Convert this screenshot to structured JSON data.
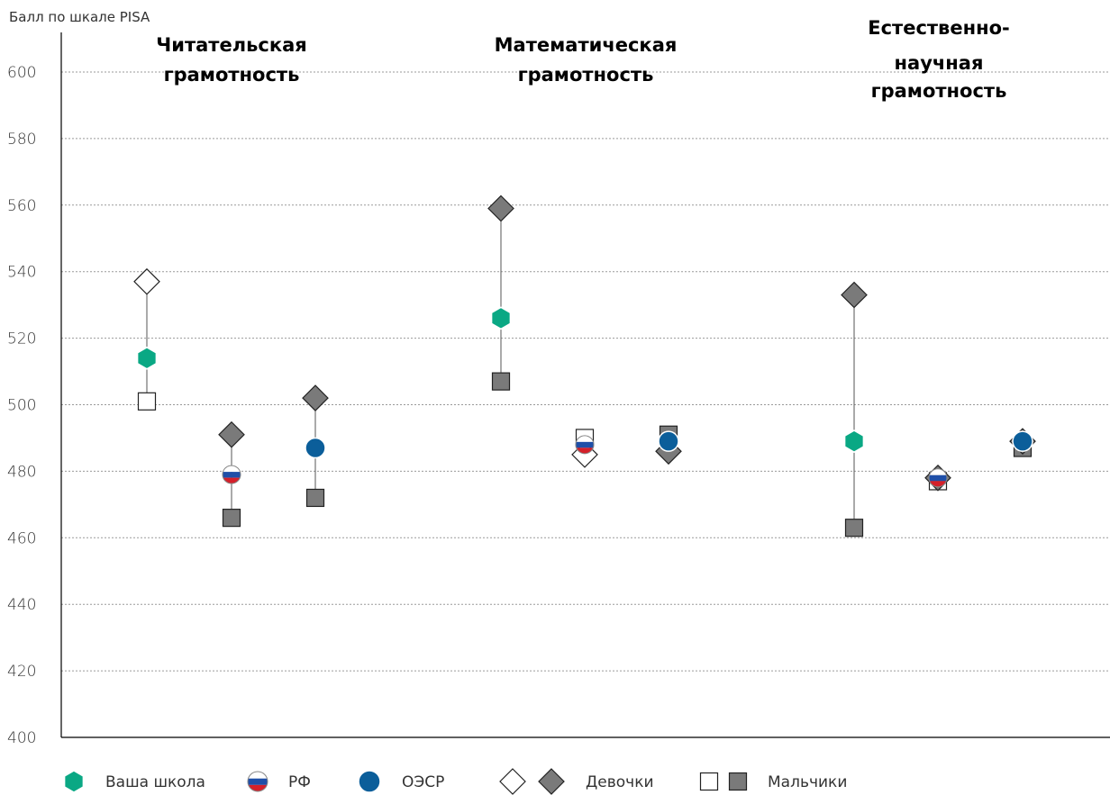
{
  "chart_data": {
    "type": "scatter",
    "ylabel": "Балл по шкале PISA",
    "ylim": [
      400,
      610
    ],
    "yticks": [
      400,
      420,
      440,
      460,
      480,
      500,
      520,
      540,
      560,
      580,
      600
    ],
    "grid": "horizontal-dashed",
    "groups": [
      {
        "title_lines": [
          "Читательская",
          "грамотность"
        ],
        "entities": [
          {
            "entity": "Ваша школа",
            "total": 514,
            "girls": 537,
            "boys": 501
          },
          {
            "entity": "РФ",
            "total": 479,
            "girls": 491,
            "boys": 466
          },
          {
            "entity": "ОЭСР",
            "total": 487,
            "girls": 502,
            "boys": 472
          }
        ]
      },
      {
        "title_lines": [
          "Математическая",
          "грамотность"
        ],
        "entities": [
          {
            "entity": "Ваша школа",
            "total": 526,
            "girls": 559,
            "boys": 507
          },
          {
            "entity": "РФ",
            "total": 488,
            "girls": 485,
            "boys": 490
          },
          {
            "entity": "ОЭСР",
            "total": 489,
            "girls": 486,
            "boys": 491
          }
        ]
      },
      {
        "title_lines": [
          "Естественно-",
          "научная",
          "грамотность"
        ],
        "entities": [
          {
            "entity": "Ваша школа",
            "total": 489,
            "girls": 533,
            "boys": 463
          },
          {
            "entity": "РФ",
            "total": 478,
            "girls": 478,
            "boys": 477
          },
          {
            "entity": "ОЭСР",
            "total": 489,
            "girls": 489,
            "boys": 487
          }
        ]
      }
    ],
    "legend": {
      "placement": "bottom",
      "items": [
        "Ваша школа",
        "РФ",
        "ОЭСР",
        "Девочки",
        "Мальчики"
      ]
    },
    "colors": {
      "school": "#0aa884",
      "oecd": "#0b5e9a",
      "gender_fill": "#7a7a7a",
      "rf_white": "#ffffff",
      "rf_blue": "#1f4fa8",
      "rf_red": "#d4202a"
    }
  }
}
